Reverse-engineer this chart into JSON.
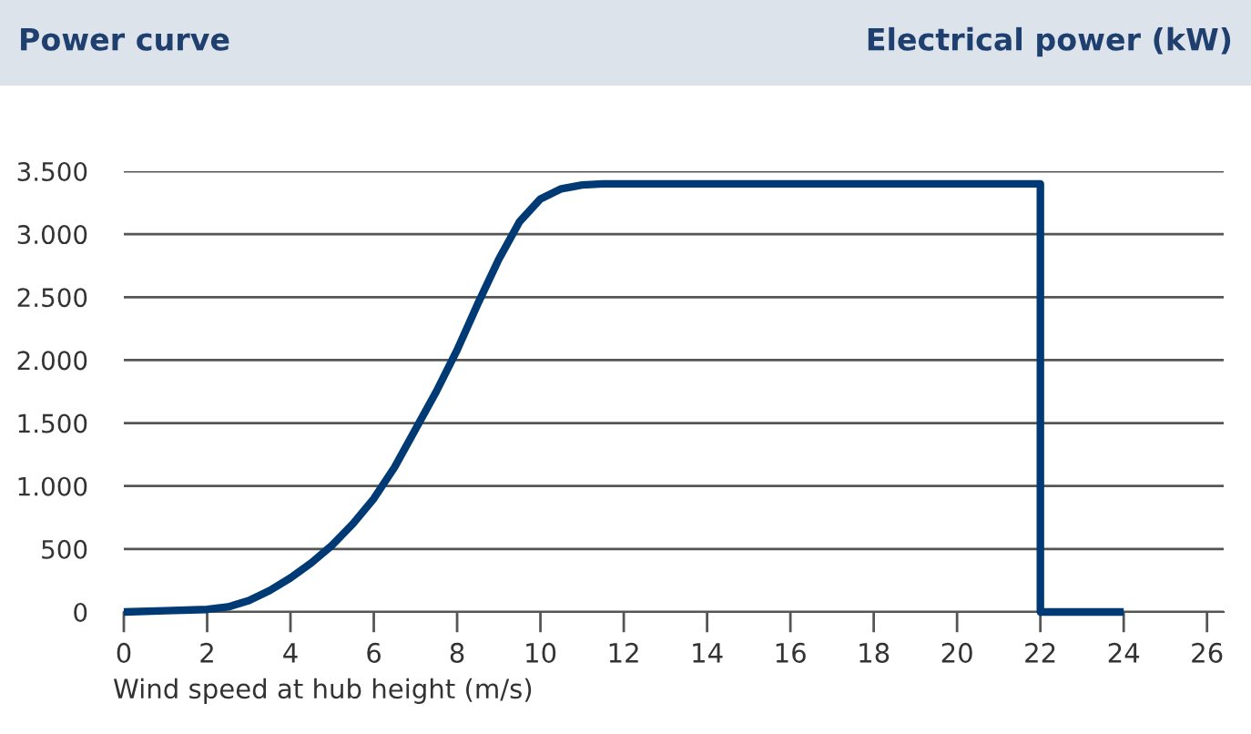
{
  "chart_data": {
    "type": "line",
    "title": "Power curve",
    "ylabel": "Electrical power (kW)",
    "xlabel": "Wind speed at hub height (m/s)",
    "x": [
      0,
      1,
      2,
      2.5,
      3,
      3.5,
      4,
      4.5,
      5,
      5.5,
      6,
      6.5,
      7,
      7.5,
      8,
      8.5,
      9,
      9.5,
      10,
      10.5,
      11,
      11.5,
      12,
      22,
      22,
      24
    ],
    "series": [
      {
        "color": "#003a75",
        "values": [
          0,
          10,
          20,
          40,
          90,
          170,
          270,
          390,
          530,
          700,
          900,
          1150,
          1450,
          1750,
          2080,
          2450,
          2800,
          3100,
          3280,
          3360,
          3390,
          3400,
          3400,
          3400,
          0,
          0
        ]
      }
    ],
    "xlim": [
      0,
      26.4
    ],
    "xticks": [
      0,
      2,
      4,
      6,
      8,
      10,
      12,
      14,
      16,
      18,
      20,
      22,
      24,
      26
    ],
    "ylim": [
      0,
      3500
    ],
    "yticks": [
      {
        "value": 0,
        "label": "0"
      },
      {
        "value": 500,
        "label": "500"
      },
      {
        "value": 1000,
        "label": "1.000"
      },
      {
        "value": 1500,
        "label": "1.500"
      },
      {
        "value": 2000,
        "label": "2.000"
      },
      {
        "value": 2500,
        "label": "2.500"
      },
      {
        "value": 3000,
        "label": "3.000"
      },
      {
        "value": 3500,
        "label": "3.500"
      }
    ],
    "grid": "y",
    "marker": "none",
    "line_style": "solid"
  }
}
